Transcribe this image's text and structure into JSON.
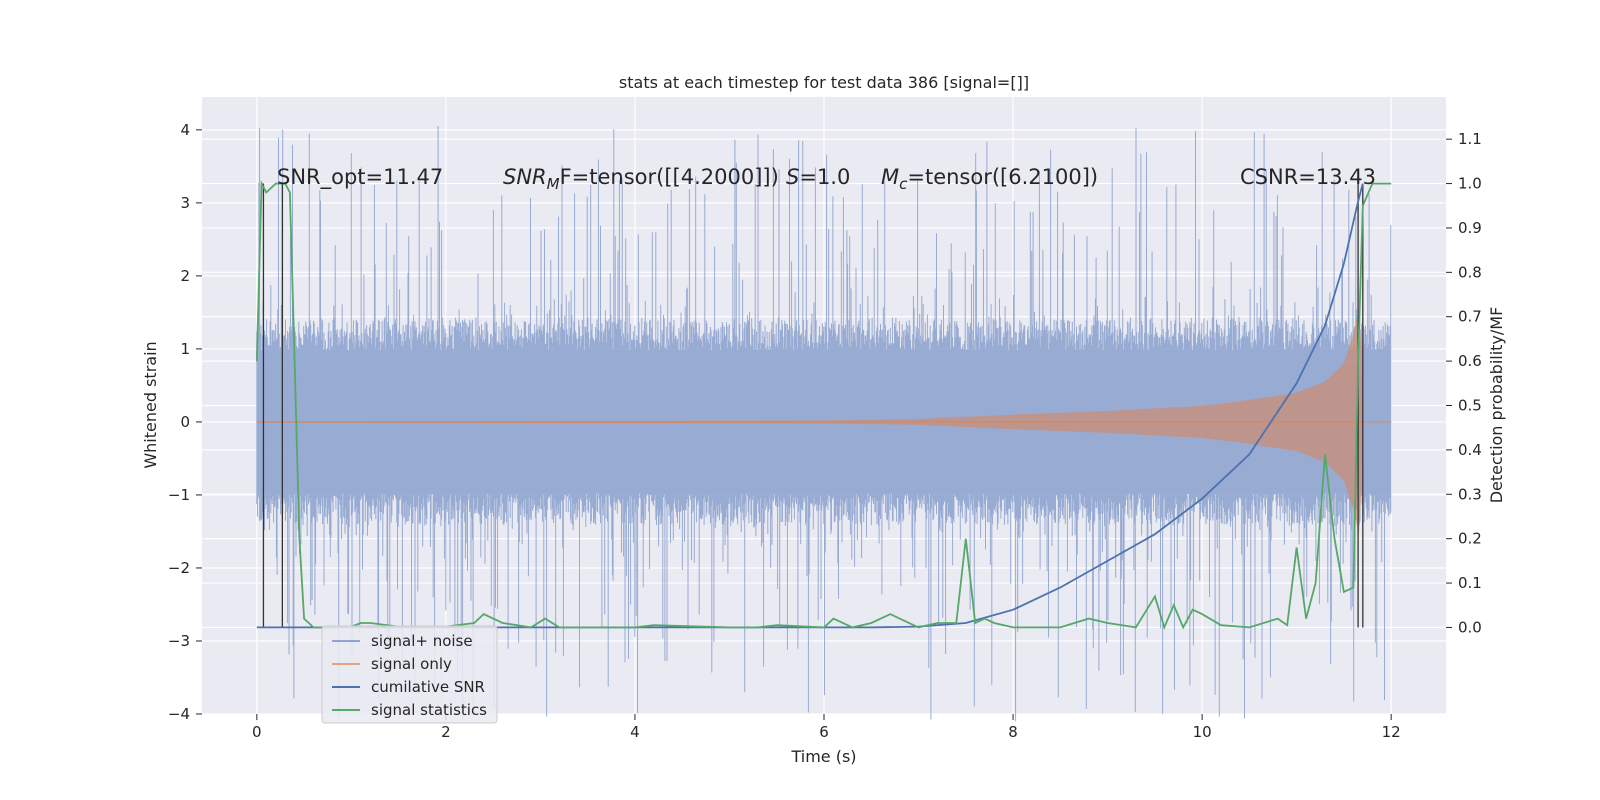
{
  "chart_data": {
    "type": "line",
    "title": "stats at each timestep for test data 386 [signal=[]]",
    "xlabel": "Time (s)",
    "ylabel": "Whitened strain",
    "y2label": "Detection probability/MF",
    "xlim": [
      -0.58,
      12.58
    ],
    "ylim": [
      -4.0,
      4.45
    ],
    "y2lim": [
      -0.195,
      1.195
    ],
    "xticks": [
      0,
      2,
      4,
      6,
      8,
      10,
      12
    ],
    "yticks": [
      -4,
      -3,
      -2,
      -1,
      0,
      1,
      2,
      3,
      4
    ],
    "y2ticks": [
      0.0,
      0.1,
      0.2,
      0.3,
      0.4,
      0.5,
      0.6,
      0.7,
      0.8,
      0.9,
      1.0,
      1.1
    ],
    "xtick_labels": [
      "0",
      "2",
      "4",
      "6",
      "8",
      "10",
      "12"
    ],
    "ytick_labels": [
      "−4",
      "−3",
      "−2",
      "−1",
      "0",
      "1",
      "2",
      "3",
      "4"
    ],
    "y2tick_labels": [
      "0.0",
      "0.1",
      "0.2",
      "0.3",
      "0.4",
      "0.5",
      "0.6",
      "0.7",
      "0.8",
      "0.9",
      "1.0",
      "1.1"
    ],
    "grid": true,
    "legend_position": "lower-left",
    "annotations": {
      "snr_opt": "SNR_opt=11.47",
      "snr_mf_sym": "SNR",
      "snr_mf_sub": "M",
      "snr_mf_rest": "F=tensor([[4.2000]])",
      "s_sym": "S",
      "s_rest": "=1.0",
      "mc_sym": "M",
      "mc_sub": "c",
      "mc_rest": "=tensor([6.2100])",
      "csnr": "CSNR=13.43"
    },
    "colors": {
      "background": "#eaeaf2",
      "grid": "#ffffff",
      "noise": "#8fa4cf",
      "signal": "#dd8452",
      "snr": "#4c72b0",
      "stat": "#55a868",
      "marker": "#333333"
    },
    "series": [
      {
        "name": "signal+ noise",
        "axis": "left",
        "band_core": 1.4,
        "spike_max": 4.1,
        "x_range": [
          0,
          12
        ]
      },
      {
        "name": "signal only",
        "axis": "left",
        "envelope": [
          [
            0,
            0.01
          ],
          [
            6,
            0.02
          ],
          [
            7,
            0.04
          ],
          [
            8,
            0.1
          ],
          [
            9,
            0.15
          ],
          [
            10,
            0.22
          ],
          [
            10.5,
            0.3
          ],
          [
            11,
            0.4
          ],
          [
            11.3,
            0.55
          ],
          [
            11.5,
            0.8
          ],
          [
            11.6,
            1.2
          ],
          [
            11.67,
            1.6
          ],
          [
            11.7,
            0.0
          ],
          [
            12,
            0.0
          ]
        ]
      },
      {
        "name": "cumilative SNR",
        "axis": "right",
        "x": [
          0,
          6.5,
          7.0,
          7.5,
          8.0,
          8.5,
          9.0,
          9.5,
          10.0,
          10.5,
          11.0,
          11.3,
          11.5,
          11.65,
          11.7
        ],
        "y": [
          0.0,
          0.0,
          0.002,
          0.01,
          0.04,
          0.09,
          0.15,
          0.21,
          0.29,
          0.39,
          0.55,
          0.68,
          0.82,
          0.96,
          1.0
        ]
      },
      {
        "name": "signal statistics",
        "axis": "right",
        "x": [
          0,
          0.05,
          0.1,
          0.2,
          0.3,
          0.35,
          0.4,
          0.45,
          0.5,
          0.6,
          0.8,
          1.0,
          1.1,
          1.2,
          1.5,
          2.0,
          2.3,
          2.4,
          2.6,
          2.9,
          3.05,
          3.2,
          4.0,
          4.2,
          5.0,
          5.3,
          5.5,
          6.0,
          6.1,
          6.3,
          6.5,
          6.7,
          6.8,
          7.0,
          7.2,
          7.4,
          7.5,
          7.6,
          7.7,
          7.8,
          8.0,
          8.5,
          8.8,
          9.0,
          9.3,
          9.5,
          9.6,
          9.7,
          9.8,
          9.9,
          10.0,
          10.2,
          10.5,
          10.8,
          10.9,
          11.0,
          11.1,
          11.2,
          11.3,
          11.4,
          11.5,
          11.6,
          11.65,
          11.7,
          11.8,
          12.0
        ],
        "y": [
          0.6,
          1.0,
          0.98,
          1.0,
          1.0,
          0.98,
          0.6,
          0.2,
          0.02,
          0.0,
          0.0,
          0.002,
          0.01,
          0.01,
          0.002,
          0.002,
          0.01,
          0.03,
          0.01,
          0.0,
          0.02,
          0.0,
          0.0,
          0.005,
          0.0,
          0.0,
          0.005,
          0.0,
          0.02,
          0.0,
          0.01,
          0.03,
          0.02,
          0.0,
          0.01,
          0.01,
          0.2,
          0.01,
          0.02,
          0.01,
          0.0,
          0.0,
          0.02,
          0.01,
          0.0,
          0.07,
          0.0,
          0.05,
          0.0,
          0.04,
          0.03,
          0.005,
          0.0,
          0.02,
          0.005,
          0.18,
          0.02,
          0.1,
          0.39,
          0.2,
          0.08,
          0.09,
          0.6,
          0.95,
          1.0,
          1.0
        ]
      }
    ],
    "vlines": [
      0.07,
      0.27,
      11.65,
      11.7
    ]
  }
}
